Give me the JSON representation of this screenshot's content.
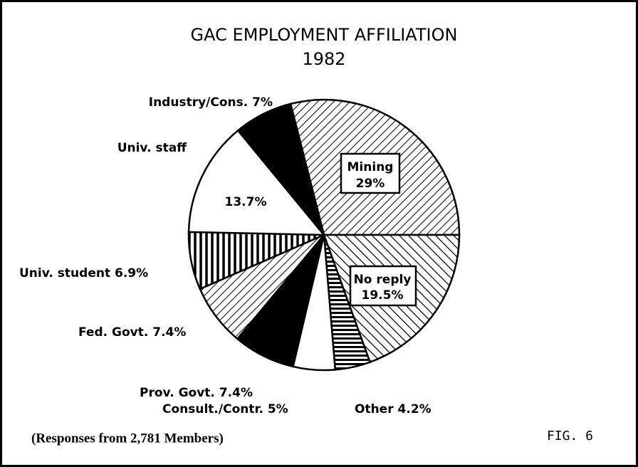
{
  "chart_data": {
    "type": "pie",
    "title": "GAC EMPLOYMENT AFFILIATION",
    "subtitle": "1982",
    "categories": [
      "Mining",
      "No reply",
      "Other",
      "Consult./Contr.",
      "Prov. Govt.",
      "Fed. Govt.",
      "Univ. student",
      "Univ. staff",
      "Industry/Cons."
    ],
    "values": [
      29,
      19.5,
      4.2,
      5,
      7.4,
      7.4,
      6.9,
      13.7,
      7
    ],
    "value_labels": [
      "29%",
      "19.5%",
      "4.2%",
      "5%",
      "7.4%",
      "7.4%",
      "6.9%",
      "13.7%",
      "7%"
    ],
    "patterns": [
      "diagonal-down",
      "diagonal-up",
      "horizontal",
      "white",
      "black",
      "diagonal-down",
      "vertical",
      "white",
      "black"
    ],
    "annotations": [
      "(Responses from 2,781 Members)",
      "FIG. 6"
    ]
  }
}
